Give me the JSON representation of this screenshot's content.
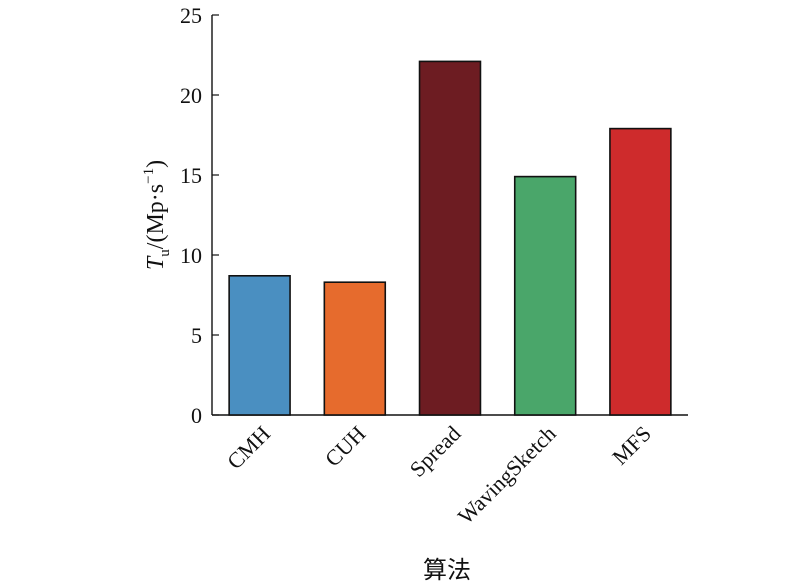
{
  "chart_data": {
    "type": "bar",
    "categories": [
      "CMH",
      "CUH",
      "Spread",
      "WavingSketch",
      "MFS"
    ],
    "values": [
      8.7,
      8.3,
      22.1,
      14.9,
      17.9
    ],
    "colors": [
      "#4a8fc1",
      "#e66b2d",
      "#6d1c22",
      "#4aa66a",
      "#ce2b2c"
    ],
    "xlabel": "算法",
    "ylabel": {
      "symbol": "T",
      "subscript": "u",
      "unit": "/(Mp·s",
      "exponent": "−1",
      "close": ")"
    },
    "ylim": [
      0,
      25
    ],
    "yticks": [
      0,
      5,
      10,
      15,
      20,
      25
    ],
    "grid": false,
    "legend": "none"
  }
}
